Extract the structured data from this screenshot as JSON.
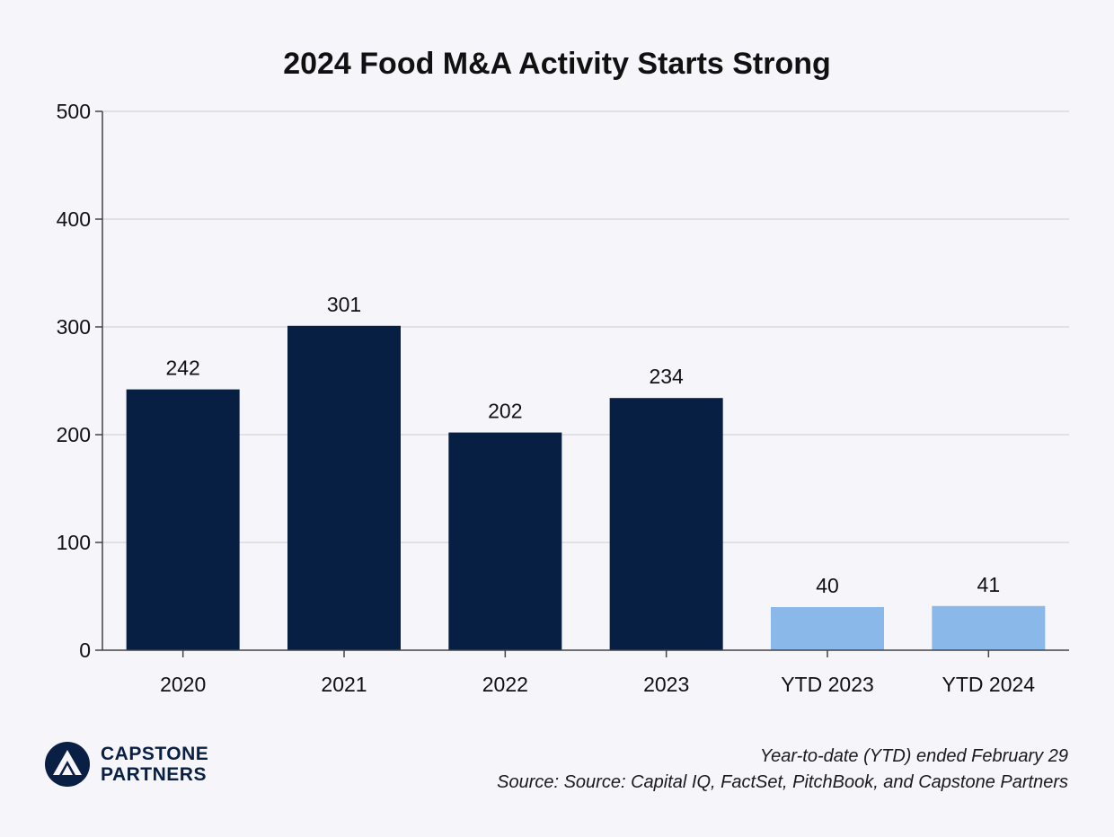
{
  "colors": {
    "background": "#f5f5fa",
    "bar_annual": "#061f43",
    "bar_ytd": "#8ab8e8",
    "grid": "#d9d9e3",
    "axis": "#444444",
    "text": "#111111"
  },
  "chart_data": {
    "type": "bar",
    "title": "2024 Food M&A Activity Starts Strong",
    "xlabel": "",
    "ylabel": "",
    "categories": [
      "2020",
      "2021",
      "2022",
      "2023",
      "YTD 2023",
      "YTD 2024"
    ],
    "values": [
      242,
      301,
      202,
      234,
      40,
      41
    ],
    "bar_colors": [
      "#061f43",
      "#061f43",
      "#061f43",
      "#061f43",
      "#8ab8e8",
      "#8ab8e8"
    ],
    "ylim": [
      0,
      500
    ],
    "yticks": [
      0,
      100,
      200,
      300,
      400,
      500
    ],
    "grid": true,
    "legend": "none",
    "data_labels": true
  },
  "logo": {
    "line1": "CAPSTONE",
    "line2": "PARTNERS",
    "icon": "capstone-mountain-icon"
  },
  "footnote": {
    "line1": "Year-to-date (YTD) ended February 29",
    "line2": "Source: Source: Capital IQ, FactSet, PitchBook, and Capstone Partners"
  }
}
